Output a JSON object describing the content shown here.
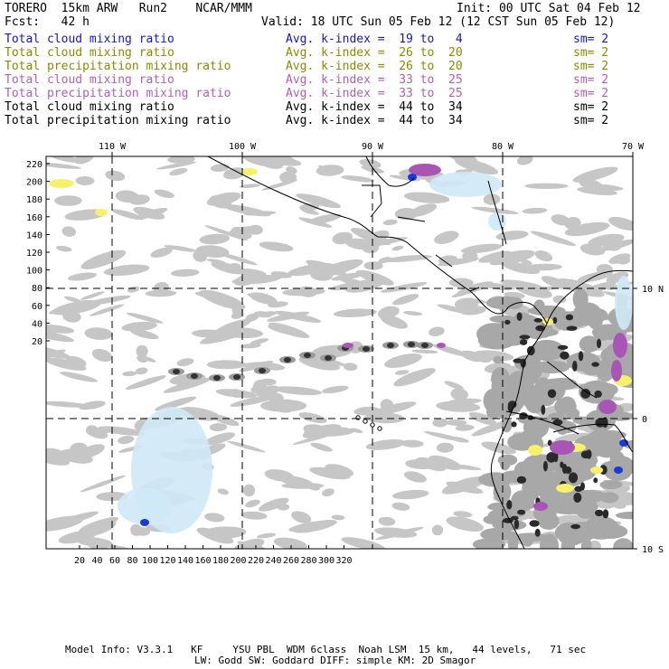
{
  "header": {
    "left_line1": "TORERO  15km ARW   Run2    NCAR/MMM",
    "left_line2": "Fcst:   42 h",
    "init": "Init: 00 UTC Sat 04 Feb 12",
    "valid": "Valid: 18 UTC Sun 05 Feb 12 (12 CST Sun 05 Feb 12)"
  },
  "legend": [
    {
      "name": "Total cloud mixing ratio",
      "kindex": "Avg. k-index =  19 to   4",
      "sm": "sm= 2",
      "color": "#1515c8"
    },
    {
      "name": "Total cloud mixing ratio",
      "kindex": "Avg. k-index =  26 to  20",
      "sm": "sm= 2",
      "color": "#8a8a00"
    },
    {
      "name": "Total precipitation mixing ratio",
      "kindex": "Avg. k-index =  26 to  20",
      "sm": "sm= 2",
      "color": "#8a8a00"
    },
    {
      "name": "Total cloud mixing ratio",
      "kindex": "Avg. k-index =  33 to  25",
      "sm": "sm= 2",
      "color": "#b060b0"
    },
    {
      "name": "Total precipitation mixing ratio",
      "kindex": "Avg. k-index =  33 to  25",
      "sm": "sm= 2",
      "color": "#b060b0"
    },
    {
      "name": "Total cloud mixing ratio",
      "kindex": "Avg. k-index =  44 to  34",
      "sm": "sm= 2",
      "color": "#000000"
    },
    {
      "name": "Total precipitation mixing ratio",
      "kindex": "Avg. k-index =  44 to  34",
      "sm": "sm= 2",
      "color": "#000000"
    }
  ],
  "map": {
    "top_labels": [
      "110 W",
      "100 W",
      "90 W",
      "80 W",
      "70 W"
    ],
    "right_labels": [
      "10 N",
      "0",
      "10 S"
    ],
    "y_ticks": [
      "220",
      "200",
      "180",
      "160",
      "140",
      "120",
      "100",
      "80",
      "60",
      "40",
      "20"
    ],
    "x_ticks": [
      "20",
      "40",
      "60",
      "80",
      "100",
      "120",
      "140",
      "160",
      "180",
      "200",
      "220",
      "240",
      "260",
      "280",
      "300",
      "320"
    ]
  },
  "footer": {
    "line1": "Model Info: V3.3.1   KF     YSU PBL  WDM 6class  Noah LSM  15 km,   44 levels,   71 sec",
    "line2": "LW: Godd SW: Goddard DIFF: simple KM: 2D Smagor"
  }
}
